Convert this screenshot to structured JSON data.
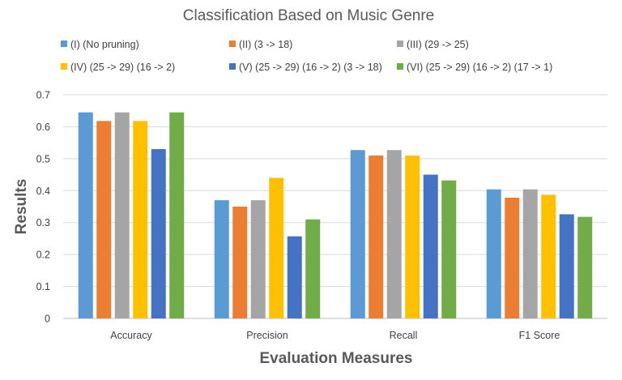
{
  "chart_data": {
    "type": "bar",
    "title": "Classification Based on Music Genre",
    "xlabel": "Evaluation Measures",
    "ylabel": "Results",
    "ylim": [
      0,
      0.7
    ],
    "yticks": [
      "0",
      "0.1",
      "0.2",
      "0.3",
      "0.4",
      "0.5",
      "0.6",
      "0.7"
    ],
    "ytick_values": [
      0,
      0.1,
      0.2,
      0.3,
      0.4,
      0.5,
      0.6,
      0.7
    ],
    "grid": true,
    "legend_position": "top",
    "categories": [
      "Accuracy",
      "Precision",
      "Recall",
      "F1 Score"
    ],
    "series": [
      {
        "name": "(I) (No pruning)",
        "color": "#5b9bd5",
        "values": [
          0.645,
          0.37,
          0.527,
          0.404
        ]
      },
      {
        "name": "(II) (3  -> 18)",
        "color": "#ed7d31",
        "values": [
          0.618,
          0.35,
          0.51,
          0.378
        ]
      },
      {
        "name": "(III) (29 -> 25)",
        "color": "#a5a5a5",
        "values": [
          0.645,
          0.37,
          0.527,
          0.404
        ]
      },
      {
        "name": "(IV) (25 -> 29) (16 -> 2)",
        "color": "#ffc000",
        "values": [
          0.618,
          0.44,
          0.51,
          0.387
        ]
      },
      {
        "name": "(V) (25 -> 29) (16 -> 2) (3  -> 18)",
        "color": "#4472c4",
        "values": [
          0.53,
          0.257,
          0.45,
          0.326
        ]
      },
      {
        "name": "(VI) (25 -> 29) (16 -> 2) (17 -> 1)",
        "color": "#70ad47",
        "values": [
          0.645,
          0.31,
          0.432,
          0.318
        ]
      }
    ]
  }
}
